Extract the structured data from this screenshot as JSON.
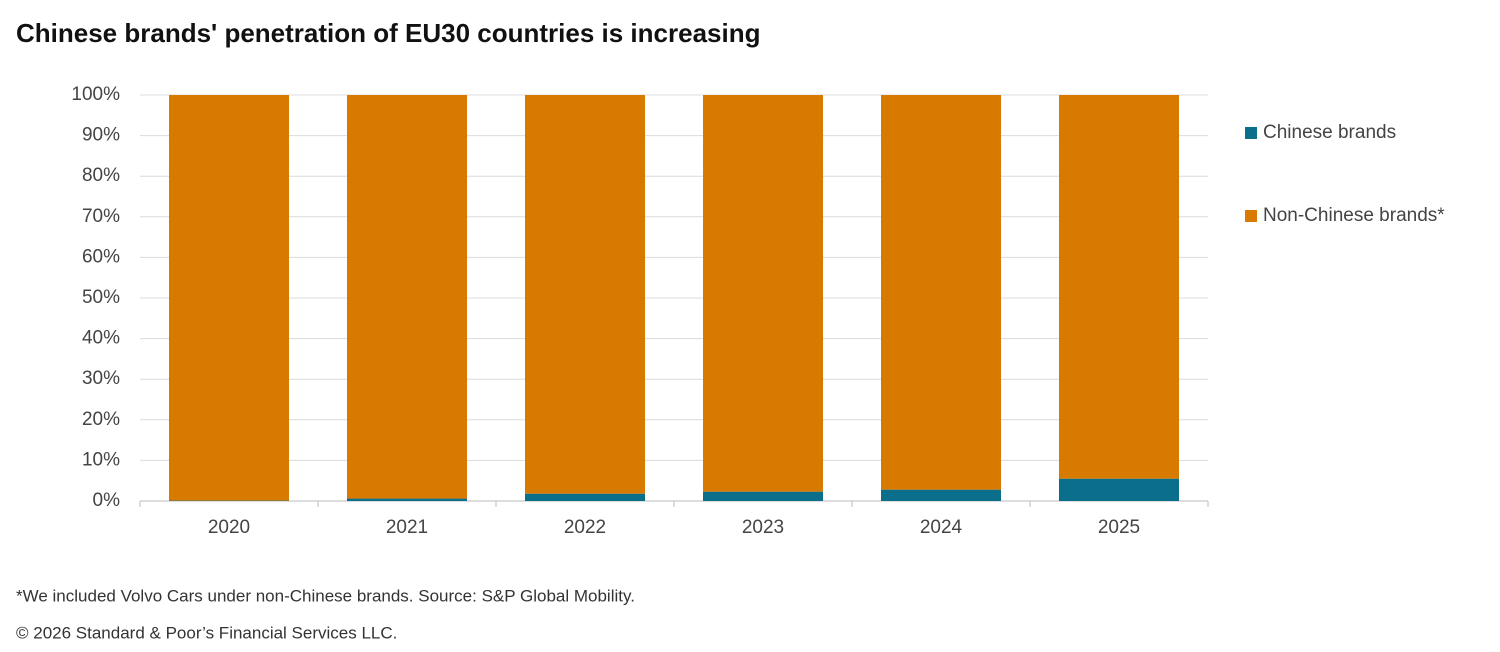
{
  "chart_data": {
    "type": "stacked_bar",
    "title": "Chinese brands' penetration of EU30 countries is increasing",
    "categories": [
      "2020",
      "2021",
      "2022",
      "2023",
      "2024",
      "2025"
    ],
    "series": [
      {
        "name": "Chinese brands",
        "color": "#0b6e8a",
        "values": [
          0.1,
          0.6,
          1.8,
          2.3,
          2.8,
          5.5
        ]
      },
      {
        "name": "Non-Chinese brands*",
        "color": "#d97a00",
        "values": [
          99.9,
          99.4,
          98.2,
          97.7,
          97.2,
          94.5
        ]
      }
    ],
    "ylim": [
      0,
      100
    ],
    "yticks": [
      {
        "value": 0,
        "label": "0%"
      },
      {
        "value": 10,
        "label": "10%"
      },
      {
        "value": 20,
        "label": "20%"
      },
      {
        "value": 30,
        "label": "30%"
      },
      {
        "value": 40,
        "label": "40%"
      },
      {
        "value": 50,
        "label": "50%"
      },
      {
        "value": 60,
        "label": "60%"
      },
      {
        "value": 70,
        "label": "70%"
      },
      {
        "value": 80,
        "label": "80%"
      },
      {
        "value": 90,
        "label": "90%"
      },
      {
        "value": 100,
        "label": "100%"
      }
    ],
    "grid": true,
    "legend": "right",
    "footnote": "*We included Volvo Cars under non-Chinese brands. Source: S&P Global Mobility.",
    "copyright": "© 2026 Standard & Poor’s Financial Services LLC."
  }
}
